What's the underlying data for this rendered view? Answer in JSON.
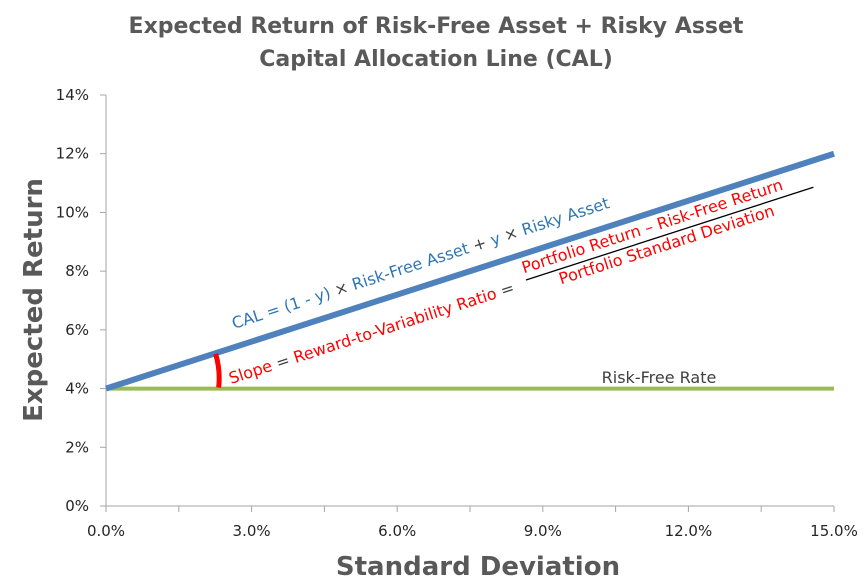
{
  "chart_data": {
    "type": "line",
    "title": "Expected Return of Risk-Free Asset + Risky Asset",
    "subtitle": "Capital Allocation Line (CAL)",
    "xlabel": "Standard Deviation",
    "ylabel": "Expected Return",
    "xlim": [
      0,
      15
    ],
    "ylim": [
      0,
      14
    ],
    "x_ticks": [
      "0.0%",
      "3.0%",
      "6.0%",
      "9.0%",
      "12.0%",
      "15.0%"
    ],
    "x_tick_values": [
      0,
      3,
      6,
      9,
      12,
      15
    ],
    "y_ticks": [
      "0%",
      "2%",
      "4%",
      "6%",
      "8%",
      "10%",
      "12%",
      "14%"
    ],
    "y_tick_values": [
      0,
      2,
      4,
      6,
      8,
      10,
      12,
      14
    ],
    "grid": false,
    "series": [
      {
        "name": "CAL",
        "color": "#4F81BD",
        "x": [
          0,
          15
        ],
        "y": [
          4,
          12
        ]
      },
      {
        "name": "Risk-Free Rate",
        "color": "#9BBB59",
        "x": [
          0,
          15
        ],
        "y": [
          4,
          4
        ]
      }
    ],
    "annotations": {
      "cal_label_parts": [
        "CAL = (1 - y) ",
        "×",
        " Risk-Free Asset ",
        "+",
        " y ",
        "×",
        " Risky Asset"
      ],
      "slope_label_parts": [
        "Slope",
        " = ",
        "Reward-to-Variability Ratio",
        " = "
      ],
      "numerator": "Portfolio Return – Risk-Free Return",
      "denominator": "Portfolio Standard Deviation",
      "rf_label": "Risk-Free Rate",
      "colors": {
        "blue": "#2E75B6",
        "red": "#FF0000",
        "dark": "#404040",
        "green_text": "#404040"
      }
    }
  }
}
